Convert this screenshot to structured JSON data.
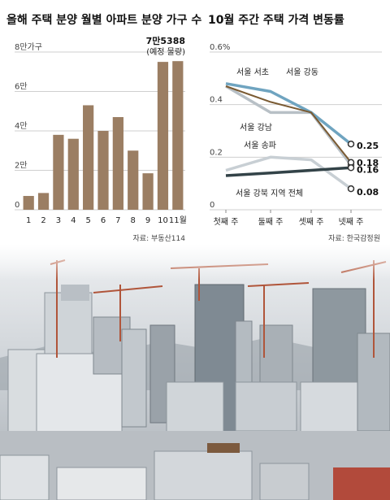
{
  "chart_data": [
    {
      "type": "bar",
      "title": "올해 주택 분양 월별 아파트 분양 가구 수",
      "unit_label": "8만가구",
      "y_ticks": [
        "8만가구",
        "6만",
        "4만",
        "2만",
        "0"
      ],
      "ylim": [
        0,
        80000
      ],
      "categories": [
        "1",
        "2",
        "3",
        "4",
        "5",
        "6",
        "7",
        "8",
        "9",
        "10",
        "11월"
      ],
      "values": [
        7000,
        8500,
        38000,
        36000,
        53000,
        40000,
        47000,
        30000,
        18500,
        75000,
        75388
      ],
      "annotation_value": "7만5388",
      "annotation_note": "(예정 물량)",
      "source": "자료: 부동산114",
      "bar_color": "#9b7e63"
    },
    {
      "type": "line",
      "title": "10월 주간 주택 가격 변동률",
      "y_ticks": [
        "0.6%",
        "0.4",
        "0.2",
        "0"
      ],
      "ylim": [
        0,
        0.6
      ],
      "categories": [
        "첫째 주",
        "둘째 주",
        "셋째 주",
        "넷째 주"
      ],
      "series": [
        {
          "name": "서울 서초",
          "values": [
            0.48,
            0.45,
            0.37,
            0.25
          ],
          "end_label": "0.25",
          "color": "#6fa4c0"
        },
        {
          "name": "서울 강동",
          "values": [
            0.47,
            0.41,
            0.37,
            0.18
          ],
          "end_label": "0.18",
          "color": "#7a5a32"
        },
        {
          "name": "서울 강남",
          "values": [
            0.47,
            0.37,
            0.37,
            0.17
          ],
          "end_label": "",
          "color": "#b8c0c6"
        },
        {
          "name": "서울 송파",
          "values": [
            0.15,
            0.2,
            0.19,
            0.08
          ],
          "end_label": "0.08",
          "color": "#c8cfd4"
        },
        {
          "name": "서울 강북 지역 전체",
          "values": [
            0.13,
            0.14,
            0.15,
            0.16
          ],
          "end_label": "0.16",
          "color": "#334348"
        }
      ],
      "source": "자료: 한국감정원"
    }
  ],
  "photo": {
    "sky": "#c7ccd2",
    "building_light": "#dde2e6",
    "building_dark": "#8a939b"
  }
}
